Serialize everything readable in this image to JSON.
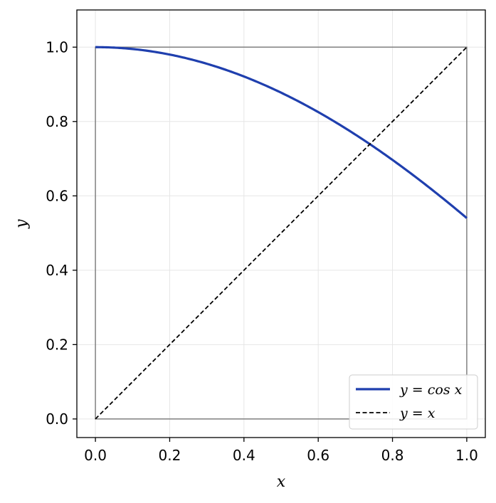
{
  "chart_data": {
    "type": "line",
    "title": "",
    "xlabel": "x",
    "ylabel": "y",
    "xlim": [
      -0.05,
      1.05
    ],
    "ylim": [
      -0.05,
      1.1
    ],
    "xticks": [
      "0.0",
      "0.2",
      "0.4",
      "0.6",
      "0.8",
      "1.0"
    ],
    "yticks": [
      "0.0",
      "0.2",
      "0.4",
      "0.6",
      "0.8",
      "1.0"
    ],
    "grid": true,
    "legend_position": "bottom-right",
    "series": [
      {
        "name": "y = cos x",
        "style": "solid",
        "color": "#1f3fae",
        "x": [
          0.0,
          0.1,
          0.2,
          0.3,
          0.4,
          0.5,
          0.6,
          0.7,
          0.8,
          0.9,
          1.0
        ],
        "y": [
          1.0,
          0.995,
          0.98,
          0.955,
          0.921,
          0.878,
          0.825,
          0.765,
          0.697,
          0.622,
          0.54
        ]
      },
      {
        "name": "y = x",
        "style": "dashed",
        "color": "#000000",
        "x": [
          0.0,
          1.0
        ],
        "y": [
          0.0,
          1.0
        ]
      }
    ],
    "unit_square": {
      "x": [
        0,
        1
      ],
      "y": [
        0,
        1
      ],
      "color": "#808080"
    }
  }
}
